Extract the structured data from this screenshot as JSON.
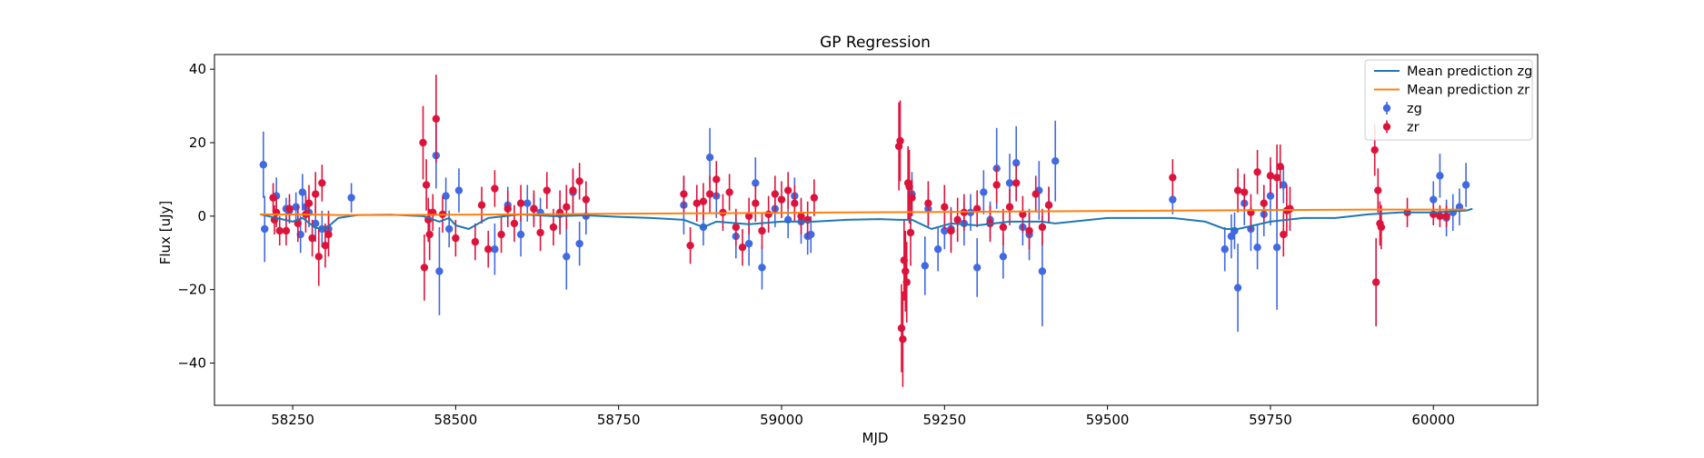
{
  "chart_data": {
    "type": "scatter",
    "title": "GP Regression",
    "xlabel": "MJD",
    "ylabel": "Flux [uJy]",
    "xlim": [
      58130,
      60160
    ],
    "ylim": [
      -51.5,
      44
    ],
    "xticks": [
      58250,
      58500,
      58750,
      59000,
      59250,
      59500,
      59750,
      60000
    ],
    "yticks": [
      -40,
      -20,
      0,
      20,
      40
    ],
    "grid": false,
    "legend_position": "top-right",
    "legend": [
      "Mean prediction zg",
      "Mean prediction zr",
      "zg",
      "zr"
    ],
    "colors": {
      "zg_line": "#1f77b4",
      "zr_line": "#ff7f0e",
      "zg_points": "#4169e1",
      "zr_points": "#dc143c"
    },
    "lines": [
      {
        "name": "Mean prediction zg",
        "x": [
          58200,
          58250,
          58265,
          58285,
          58300,
          58320,
          58350,
          58400,
          58450,
          58475,
          58490,
          58500,
          58520,
          58550,
          58600,
          58650,
          58700,
          58750,
          58800,
          58850,
          58880,
          58900,
          58950,
          59000,
          59050,
          59100,
          59150,
          59180,
          59200,
          59230,
          59260,
          59300,
          59350,
          59400,
          59420,
          59500,
          59600,
          59650,
          59680,
          59700,
          59750,
          59800,
          59850,
          59900,
          59950,
          60000,
          60050,
          60060
        ],
        "y": [
          0.5,
          -1.5,
          -0.5,
          -3.2,
          -3.5,
          -0.5,
          0.3,
          0.4,
          0.0,
          -1.5,
          -0.5,
          -2.5,
          -3.5,
          -0.5,
          0.5,
          0.0,
          0.2,
          -0.2,
          -0.5,
          -1.0,
          -3.0,
          -1.5,
          -2.2,
          -1.5,
          -1.5,
          -1.0,
          -0.8,
          -1.0,
          -1.0,
          -3.5,
          -2.0,
          -2.5,
          -1.5,
          -1.5,
          -2.0,
          -0.5,
          -0.5,
          -1.5,
          -3.5,
          -3.5,
          -1.5,
          -0.5,
          -0.5,
          0.5,
          1.0,
          1.0,
          1.5,
          2.0
        ]
      },
      {
        "name": "Mean prediction zr",
        "x": [
          58200,
          58300,
          58320,
          58400,
          58500,
          58600,
          58700,
          58800,
          58900,
          59000,
          59100,
          59200,
          59300,
          59400,
          59500,
          59600,
          59700,
          59800,
          59900,
          59950,
          60000,
          60050
        ],
        "y": [
          0.5,
          0.4,
          0.3,
          0.3,
          0.4,
          0.5,
          0.6,
          0.7,
          0.8,
          0.9,
          1.0,
          1.1,
          1.2,
          1.3,
          1.4,
          1.5,
          1.6,
          1.7,
          1.8,
          1.8,
          1.8,
          1.8
        ]
      }
    ],
    "series": [
      {
        "name": "zg",
        "x": [
          58205,
          58207,
          58225,
          58240,
          58245,
          58255,
          58262,
          58265,
          58270,
          58275,
          58285,
          58295,
          58305,
          58340,
          58470,
          58475,
          58485,
          58490,
          58505,
          58610,
          58560,
          58580,
          58600,
          58620,
          58630,
          58660,
          58670,
          58680,
          58690,
          58700,
          58850,
          58880,
          58890,
          58900,
          58930,
          58950,
          58960,
          58970,
          58990,
          59010,
          59020,
          59030,
          59040,
          59045,
          59200,
          59220,
          59225,
          59240,
          59250,
          59260,
          59280,
          59290,
          59300,
          59310,
          59320,
          59330,
          59340,
          59350,
          59360,
          59370,
          59380,
          59395,
          59400,
          59410,
          59420,
          59600,
          59680,
          59690,
          59695,
          59700,
          59710,
          59720,
          59730,
          59740,
          59750,
          59760,
          59770,
          60000,
          60010,
          60020,
          60030,
          60040,
          60050
        ],
        "y": [
          14,
          -3.5,
          5.5,
          2.0,
          1.5,
          2.5,
          -5.0,
          6.5,
          2.5,
          1.0,
          -2.0,
          -3.5,
          -3.5,
          5.0,
          16.5,
          -15.0,
          5.5,
          -3.5,
          7.0,
          3.5,
          -9.0,
          3.0,
          -5.0,
          2.0,
          1.0,
          0.5,
          -11.0,
          6.5,
          -7.5,
          0.0,
          3.0,
          -3.0,
          16.0,
          5.5,
          -5.5,
          -7.5,
          9.0,
          -14.0,
          2.0,
          -1.0,
          5.5,
          -1.5,
          -5.5,
          -5.0,
          6.0,
          -13.5,
          2.0,
          -9.0,
          -4.0,
          -3.5,
          -2.0,
          1.0,
          -14.0,
          6.5,
          -1.0,
          13.0,
          -11.0,
          9.0,
          14.5,
          -3.0,
          -5.0,
          7.0,
          -15.0,
          3.0,
          15.0,
          4.5,
          -9.0,
          -5.5,
          -4.0,
          -19.5,
          3.5,
          -3.5,
          -8.5,
          0.5,
          5.5,
          -8.5,
          8.5,
          4.5,
          11.0,
          -0.5,
          1.0,
          2.5,
          8.5
        ],
        "yerr": [
          9,
          9,
          5,
          3,
          3,
          4,
          5,
          5,
          4,
          4,
          5,
          5,
          5,
          4,
          9,
          12,
          5,
          5,
          6,
          5,
          7,
          5,
          6,
          4,
          4,
          4,
          9,
          6,
          6,
          5,
          8,
          5,
          8,
          6,
          6,
          6,
          7,
          6,
          5,
          5,
          5,
          6,
          5,
          5,
          6,
          8,
          5,
          6,
          5,
          6,
          6,
          5,
          8,
          6,
          5,
          11,
          6,
          8,
          10,
          5,
          7,
          8,
          15,
          5,
          11,
          4,
          6,
          6,
          5,
          12,
          6,
          6,
          6,
          6,
          8,
          17,
          5,
          5,
          6,
          5,
          5,
          5,
          6
        ]
      },
      {
        "name": "zr",
        "x": [
          58220,
          58222,
          58225,
          58230,
          58240,
          58245,
          58258,
          58270,
          58275,
          58280,
          58285,
          58290,
          58295,
          58300,
          58305,
          58450,
          58452,
          58455,
          58458,
          58460,
          58465,
          58470,
          58480,
          58500,
          58530,
          58540,
          58550,
          58560,
          58570,
          58580,
          58590,
          58600,
          58620,
          58630,
          58640,
          58650,
          58660,
          58670,
          58680,
          58690,
          58700,
          58850,
          58860,
          58870,
          58880,
          58890,
          58900,
          58910,
          58920,
          58930,
          58940,
          58950,
          58960,
          58970,
          58980,
          58990,
          59000,
          59010,
          59020,
          59030,
          59040,
          59050,
          59180,
          59182,
          59184,
          59186,
          59188,
          59190,
          59192,
          59194,
          59196,
          59198,
          59200,
          59225,
          59250,
          59260,
          59270,
          59280,
          59300,
          59320,
          59330,
          59340,
          59350,
          59360,
          59370,
          59380,
          59390,
          59400,
          59410,
          59600,
          59700,
          59710,
          59720,
          59730,
          59740,
          59750,
          59760,
          59765,
          59770,
          59775,
          59780,
          59910,
          59912,
          59915,
          59918,
          59920,
          59960,
          60000,
          60010,
          60020
        ],
        "y": [
          5.0,
          -1.0,
          1.0,
          -4.0,
          -4.0,
          2.0,
          -2.0,
          0.5,
          3.5,
          -6.0,
          6.0,
          -11.0,
          9.0,
          -8.0,
          -5.0,
          20.0,
          -14.0,
          8.5,
          -1.0,
          -5.0,
          1.0,
          26.5,
          0.5,
          -6.0,
          -7.0,
          3.0,
          -9.0,
          7.5,
          -5.0,
          2.0,
          -2.0,
          3.5,
          2.0,
          -4.5,
          7.0,
          -3.0,
          1.0,
          2.5,
          7.0,
          9.5,
          4.5,
          6.0,
          -8.0,
          3.5,
          4.0,
          6.0,
          10.0,
          1.0,
          6.5,
          -3.0,
          -8.5,
          0.0,
          3.5,
          -4.0,
          0.5,
          6.0,
          4.5,
          7.0,
          3.5,
          0.0,
          -1.0,
          5.0,
          19.0,
          20.5,
          -30.5,
          -33.5,
          -12.0,
          -15.0,
          -18.0,
          9.0,
          8.0,
          -4.5,
          5.0,
          3.5,
          2.5,
          -4.0,
          -1.0,
          1.0,
          2.0,
          -2.0,
          8.5,
          -3.0,
          2.5,
          9.0,
          0.5,
          -4.0,
          6.0,
          -3.0,
          3.0,
          10.5,
          7.0,
          6.5,
          1.0,
          12.0,
          3.5,
          11.0,
          10.5,
          13.5,
          -5.0,
          1.5,
          2.0,
          18.0,
          -18.0,
          7.0,
          -2.0,
          -3.0,
          1.0,
          0.5,
          0.0,
          0.0
        ],
        "yerr": [
          4,
          4,
          4,
          4,
          4,
          4,
          5,
          5,
          5,
          5,
          6,
          8,
          5,
          6,
          6,
          10,
          9,
          7,
          6,
          7,
          5,
          12,
          5,
          5,
          5,
          5,
          5,
          5,
          5,
          5,
          5,
          5,
          5,
          5,
          5,
          5,
          6,
          6,
          6,
          5,
          5,
          5,
          5,
          5,
          5,
          5,
          5,
          5,
          5,
          5,
          5,
          5,
          5,
          5,
          5,
          5,
          5,
          5,
          5,
          5,
          5,
          5,
          12,
          11,
          12,
          13,
          11,
          11,
          11,
          10,
          10,
          9,
          5,
          6,
          6,
          6,
          6,
          5,
          5,
          5,
          5,
          5,
          5,
          5,
          5,
          5,
          5,
          5,
          5,
          5,
          6,
          5,
          5,
          6,
          5,
          5,
          9,
          6,
          6,
          7,
          6,
          7,
          12,
          6,
          6,
          6,
          4,
          3,
          3,
          3
        ]
      }
    ]
  }
}
